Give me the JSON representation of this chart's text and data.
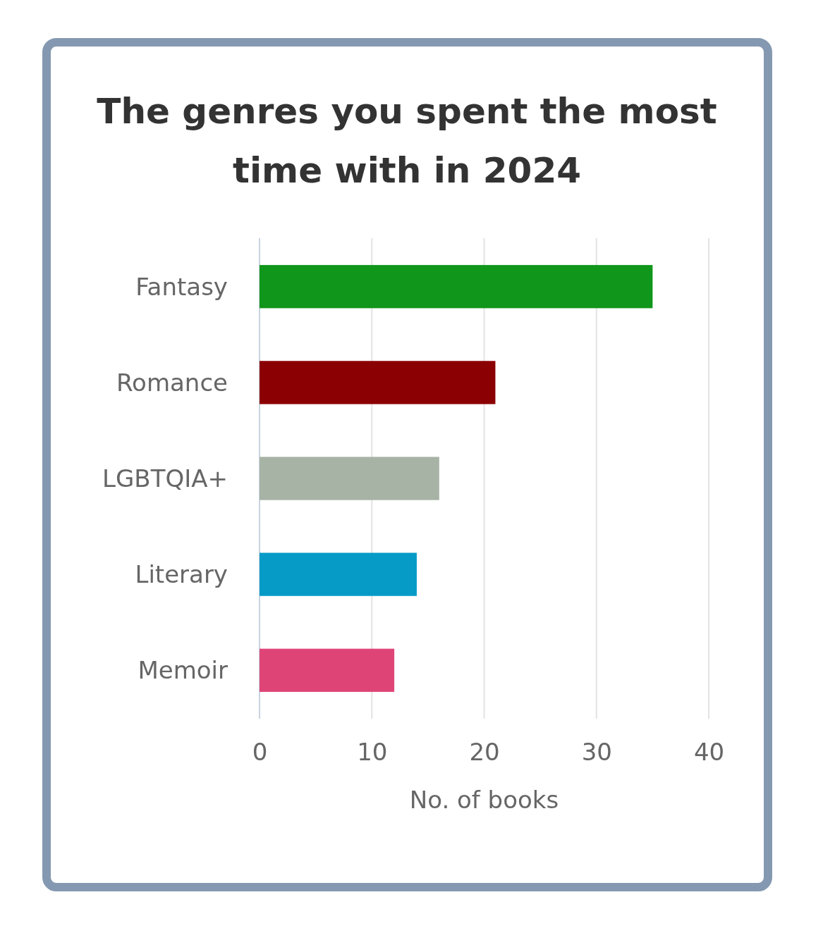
{
  "chart_data": {
    "type": "bar",
    "title": "The genres you spent the most time with in 2024",
    "orientation": "horizontal",
    "categories": [
      "Fantasy",
      "Romance",
      "LGBTQIA+",
      "Literary",
      "Memoir"
    ],
    "values": [
      35,
      21,
      16,
      14,
      12
    ],
    "colors": [
      "#10961a",
      "#8b0003",
      "#a7b3a5",
      "#069bc7",
      "#df4477"
    ],
    "xlim": [
      0,
      40
    ],
    "xticks": [
      0,
      10,
      20,
      30,
      40
    ],
    "xlabel": "No. of books",
    "grid": "x"
  }
}
